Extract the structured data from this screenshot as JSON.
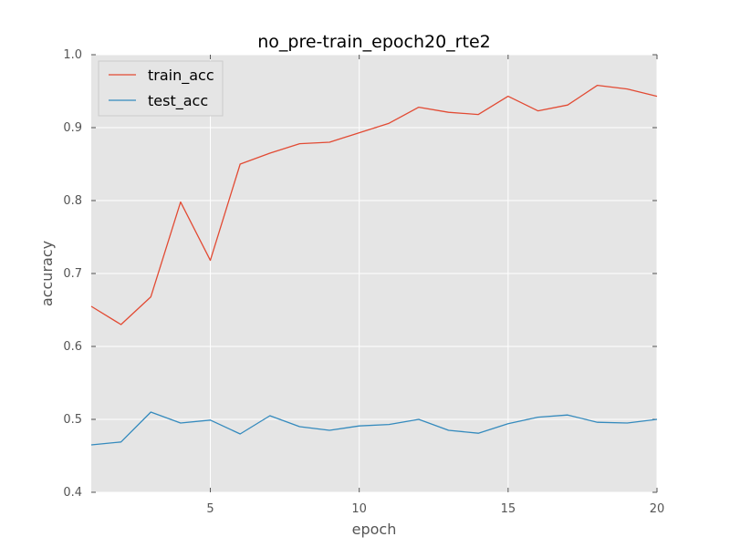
{
  "chart_data": {
    "type": "line",
    "title": "no_pre-train_epoch20_rte2",
    "xlabel": "epoch",
    "ylabel": "accuracy",
    "xlim": [
      1,
      20
    ],
    "ylim": [
      0.4,
      1.0
    ],
    "xticks": [
      5,
      10,
      15,
      20
    ],
    "xtick_labels": [
      "5",
      "10",
      "15",
      "20"
    ],
    "yticks": [
      0.4,
      0.5,
      0.6,
      0.7,
      0.8,
      0.9,
      1.0
    ],
    "ytick_labels": [
      "0.4",
      "0.5",
      "0.6",
      "0.7",
      "0.8",
      "0.9",
      "1.0"
    ],
    "grid": true,
    "legend_position": "top-left",
    "x": [
      1,
      2,
      3,
      4,
      5,
      6,
      7,
      8,
      9,
      10,
      11,
      12,
      13,
      14,
      15,
      16,
      17,
      18,
      19,
      20
    ],
    "series": [
      {
        "name": "train_acc",
        "color": "#e24a33",
        "values": [
          0.655,
          0.63,
          0.668,
          0.798,
          0.718,
          0.85,
          0.865,
          0.878,
          0.88,
          0.893,
          0.906,
          0.928,
          0.921,
          0.918,
          0.943,
          0.923,
          0.931,
          0.958,
          0.953,
          0.943
        ]
      },
      {
        "name": "test_acc",
        "color": "#348abd",
        "values": [
          0.465,
          0.469,
          0.51,
          0.495,
          0.499,
          0.48,
          0.505,
          0.49,
          0.485,
          0.491,
          0.493,
          0.5,
          0.485,
          0.481,
          0.494,
          0.503,
          0.506,
          0.496,
          0.495,
          0.5
        ]
      }
    ]
  }
}
